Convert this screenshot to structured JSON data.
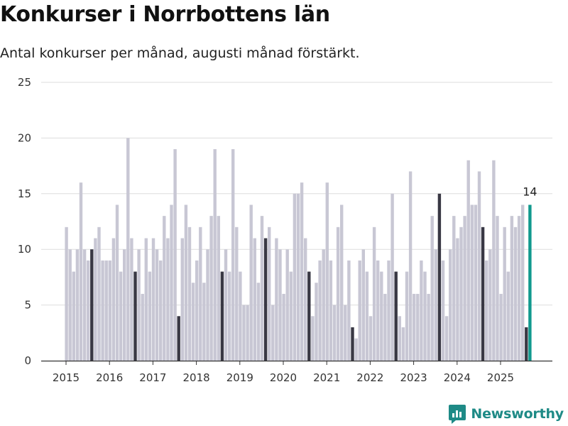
{
  "chart_data": {
    "type": "bar",
    "title": "Konkurser i Norrbottens län",
    "subtitle": "Antal konkurser per månad, augusti månad förstärkt.",
    "xlabel": "",
    "ylabel": "",
    "ylim": [
      0,
      25
    ],
    "yticks": [
      "0",
      "5",
      "10",
      "15",
      "20",
      "25"
    ],
    "x_tick_labels": [
      "2015",
      "2016",
      "2017",
      "2018",
      "2019",
      "2020",
      "2021",
      "2022",
      "2023",
      "2024",
      "2025"
    ],
    "start_period": "2015-01",
    "highlight_month": "August",
    "grid": true,
    "values": [
      12,
      10,
      8,
      10,
      16,
      10,
      9,
      10,
      11,
      12,
      9,
      9,
      9,
      11,
      14,
      8,
      10,
      20,
      11,
      8,
      10,
      6,
      11,
      8,
      11,
      10,
      9,
      13,
      11,
      14,
      19,
      4,
      11,
      14,
      12,
      7,
      9,
      12,
      7,
      10,
      13,
      19,
      13,
      8,
      10,
      8,
      19,
      12,
      8,
      5,
      5,
      14,
      11,
      7,
      13,
      11,
      12,
      5,
      11,
      10,
      6,
      10,
      8,
      15,
      15,
      16,
      11,
      8,
      4,
      7,
      9,
      10,
      16,
      9,
      5,
      12,
      14,
      5,
      9,
      3,
      2,
      9,
      10,
      8,
      4,
      12,
      9,
      8,
      6,
      9,
      15,
      8,
      4,
      3,
      8,
      17,
      6,
      6,
      9,
      8,
      6,
      13,
      10,
      15,
      9,
      4,
      10,
      13,
      11,
      12,
      13,
      18,
      14,
      14,
      17,
      12,
      9,
      10,
      18,
      13,
      6,
      12,
      8,
      13,
      12,
      13,
      14,
      3,
      14
    ],
    "annotation": {
      "label": "14"
    },
    "colors": {
      "default": "#c8c7d4",
      "highlight": "#393844",
      "latest": "#11998e",
      "grid": "#dddddd",
      "axis": "#333333"
    }
  },
  "brand": {
    "name": "Newsworthy",
    "icon": "newsworthy-logo-icon",
    "color": "#1e8a86"
  }
}
